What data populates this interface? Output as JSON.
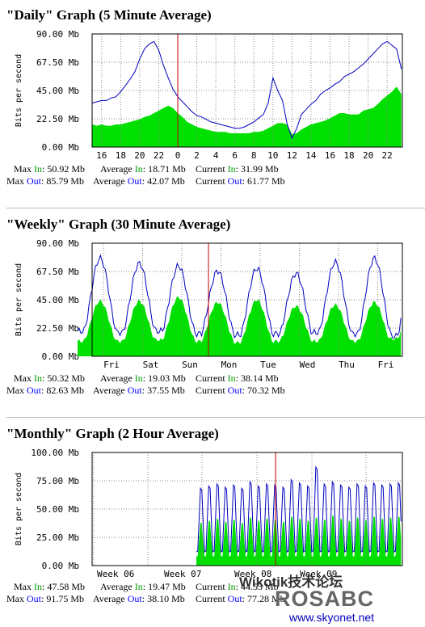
{
  "graphs": [
    {
      "title": "\"Daily\" Graph (5 Minute Average)",
      "y_axis_label": "Bits per second",
      "stats": {
        "max_in_prefix": "Max ",
        "max_in_word": "In",
        "max_in_val": ": 50.92 Mb",
        "avg_in_prefix": "Average ",
        "avg_in_word": "In",
        "avg_in_val": ": 18.71 Mb",
        "cur_in_prefix": "Current ",
        "cur_in_word": "In",
        "cur_in_val": ": 31.99 Mb",
        "max_out_prefix": "Max ",
        "max_out_word": "Out",
        "max_out_val": ": 85.79 Mb",
        "avg_out_prefix": "Average ",
        "avg_out_word": "Out",
        "avg_out_val": ": 42.07 Mb",
        "cur_out_prefix": "Current ",
        "cur_out_word": "Out",
        "cur_out_val": ": 61.77 Mb"
      }
    },
    {
      "title": "\"Weekly\" Graph (30 Minute Average)",
      "y_axis_label": "Bits per second",
      "stats": {
        "max_in_prefix": "Max ",
        "max_in_word": "In",
        "max_in_val": ": 50.32 Mb",
        "avg_in_prefix": "Average ",
        "avg_in_word": "In",
        "avg_in_val": ": 19.03 Mb",
        "cur_in_prefix": "Current ",
        "cur_in_word": "In",
        "cur_in_val": ": 38.14 Mb",
        "max_out_prefix": "Max ",
        "max_out_word": "Out",
        "max_out_val": ": 82.63 Mb",
        "avg_out_prefix": "Average ",
        "avg_out_word": "Out",
        "avg_out_val": ": 37.55 Mb",
        "cur_out_prefix": "Current ",
        "cur_out_word": "Out",
        "cur_out_val": ": 70.32 Mb"
      }
    },
    {
      "title": "\"Monthly\" Graph (2 Hour Average)",
      "y_axis_label": "Bits per second",
      "stats": {
        "max_in_prefix": "Max ",
        "max_in_word": "In",
        "max_in_val": ": 47.58 Mb",
        "avg_in_prefix": "Average ",
        "avg_in_word": "In",
        "avg_in_val": ": 19.47 Mb",
        "cur_in_prefix": "Current ",
        "cur_in_word": "In",
        "cur_in_val": ": 44.53 Mb",
        "max_out_prefix": "Max ",
        "max_out_word": "Out",
        "max_out_val": ": 91.75 Mb",
        "avg_out_prefix": "Average ",
        "avg_out_word": "Out",
        "avg_out_val": ": 38.10 Mb",
        "cur_out_prefix": "Current ",
        "cur_out_word": "Out",
        "cur_out_val": ": 77.28 Mb"
      }
    }
  ],
  "watermark": {
    "line1": "Wikotik技术论坛",
    "line2": "ROSABC",
    "line3": "www.skyonet.net"
  },
  "colors": {
    "in": "#00e000",
    "out": "#0000c0",
    "now_marker": "#c00000",
    "grid": "#888888",
    "in_text": "#00a000",
    "out_text": "#0000ff"
  },
  "chart_data": [
    {
      "type": "area",
      "title": "\"Daily\" Graph (5 Minute Average)",
      "ylabel": "Bits per second",
      "y_unit": "Mb",
      "ylim": [
        0,
        90
      ],
      "y_ticks": [
        "0.00 Mb",
        "22.50 Mb",
        "45.00 Mb",
        "67.50 Mb",
        "90.00 Mb"
      ],
      "x_ticks": [
        "16",
        "18",
        "20",
        "22",
        "0",
        "2",
        "4",
        "6",
        "8",
        "10",
        "12",
        "14",
        "16",
        "18",
        "20",
        "22"
      ],
      "x_hours": [
        15,
        15.5,
        16,
        16.5,
        17,
        17.5,
        18,
        18.5,
        19,
        19.5,
        20,
        20.5,
        21,
        21.5,
        22,
        22.5,
        23,
        23.5,
        24,
        24.5,
        25,
        25.5,
        26,
        26.5,
        27,
        27.5,
        28,
        28.5,
        29,
        29.5,
        30,
        30.5,
        31,
        31.5,
        32,
        32.5,
        33,
        33.5,
        34,
        34.5,
        35,
        35.5,
        36,
        36.5,
        37,
        37.5,
        38,
        38.5,
        39,
        39.5,
        40,
        40.5,
        41,
        41.5,
        42,
        42.5,
        43,
        43.5,
        44,
        44.5,
        45,
        45.5,
        46,
        46.5,
        47,
        47.5
      ],
      "series": [
        {
          "name": "In",
          "values": [
            18,
            17,
            18,
            17,
            17,
            18,
            18,
            19,
            20,
            21,
            22,
            24,
            25,
            27,
            29,
            31,
            33,
            31,
            27,
            24,
            20,
            18,
            16,
            15,
            14,
            13,
            12,
            12,
            12,
            11,
            11,
            11,
            11,
            11,
            12,
            12,
            13,
            15,
            17,
            19,
            19,
            18,
            10,
            11,
            14,
            16,
            18,
            19,
            20,
            21,
            23,
            25,
            27,
            27,
            26,
            26,
            26,
            29,
            30,
            31,
            34,
            38,
            41,
            44,
            48,
            42
          ]
        },
        {
          "name": "Out",
          "values": [
            35,
            36,
            37,
            37,
            39,
            40,
            44,
            49,
            54,
            60,
            70,
            78,
            82,
            84,
            77,
            65,
            55,
            46,
            40,
            36,
            32,
            28,
            25,
            24,
            22,
            20,
            19,
            18,
            17,
            16,
            15,
            15,
            16,
            18,
            20,
            23,
            26,
            35,
            55,
            45,
            37,
            18,
            7,
            15,
            26,
            30,
            34,
            37,
            42,
            45,
            47,
            50,
            52,
            56,
            58,
            60,
            63,
            66,
            70,
            74,
            78,
            82,
            84,
            81,
            78,
            62
          ]
        }
      ]
    },
    {
      "type": "area",
      "title": "\"Weekly\" Graph (30 Minute Average)",
      "ylabel": "Bits per second",
      "y_unit": "Mb",
      "ylim": [
        0,
        90
      ],
      "y_ticks": [
        "0.00 Mb",
        "22.50 Mb",
        "45.00 Mb",
        "67.50 Mb",
        "90.00 Mb"
      ],
      "x_ticks": [
        "Fri",
        "Sat",
        "Sun",
        "Mon",
        "Tue",
        "Wed",
        "Thu",
        "Fri"
      ],
      "series": [
        {
          "name": "In",
          "day_peak_values": [
            44,
            44,
            47,
            43,
            45,
            40,
            41,
            43,
            46
          ],
          "day_trough_values": [
            12,
            12,
            13,
            12,
            11,
            12,
            12,
            12,
            14
          ]
        },
        {
          "name": "Out",
          "day_peak_values": [
            78,
            74,
            72,
            68,
            70,
            66,
            75,
            78,
            82
          ],
          "day_trough_values": [
            20,
            19,
            20,
            18,
            17,
            18,
            19,
            18,
            16
          ]
        }
      ]
    },
    {
      "type": "area",
      "title": "\"Monthly\" Graph (2 Hour Average)",
      "ylabel": "Bits per second",
      "y_unit": "Mb",
      "ylim": [
        0,
        100
      ],
      "y_ticks": [
        "0.00 Mb",
        "25.00 Mb",
        "50.00 Mb",
        "75.00 Mb",
        "100.00 Mb"
      ],
      "x_ticks": [
        "Week 06",
        "Week 07",
        "Week 08",
        "Week 09"
      ],
      "series": [
        {
          "name": "In",
          "day_peak_values": [
            40,
            42,
            44,
            41,
            43,
            40,
            45,
            42,
            44,
            43,
            41,
            46,
            44,
            42,
            45,
            43,
            47,
            44,
            42,
            45,
            43,
            46,
            44,
            45,
            46
          ]
        },
        {
          "name": "Out",
          "day_peak_values": [
            72,
            74,
            76,
            73,
            75,
            72,
            78,
            74,
            76,
            75,
            73,
            80,
            77,
            74,
            92,
            76,
            78,
            75,
            73,
            76,
            74,
            77,
            75,
            76,
            77
          ]
        }
      ]
    }
  ]
}
